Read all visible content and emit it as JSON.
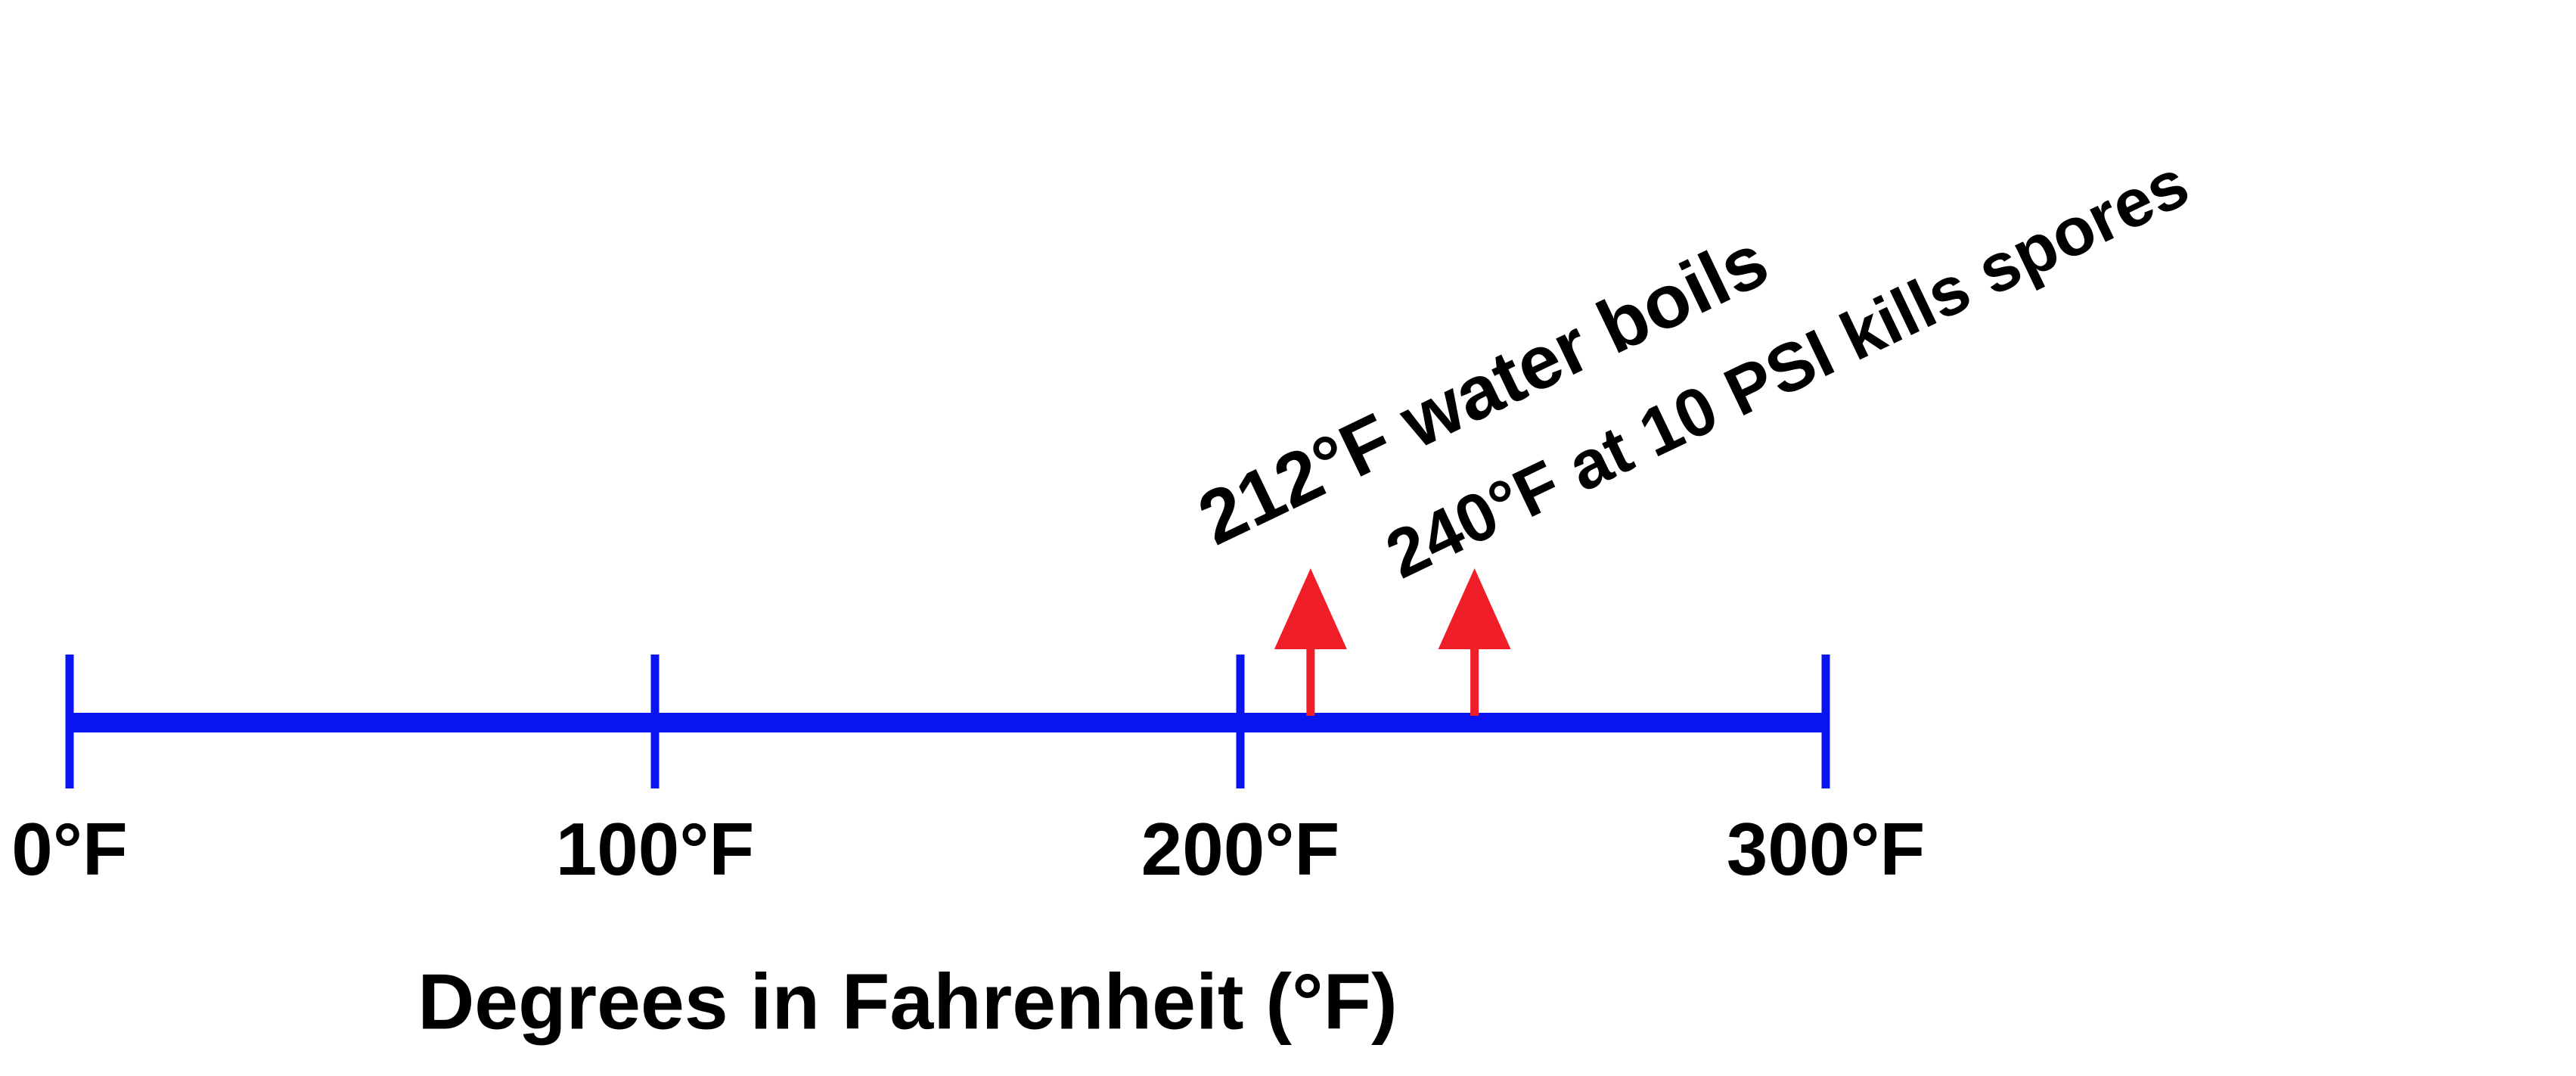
{
  "chart_data": {
    "type": "numberline",
    "xlim": [
      0,
      300
    ],
    "xticks": [
      {
        "value": 0,
        "label": "0°F"
      },
      {
        "value": 100,
        "label": "100°F"
      },
      {
        "value": 200,
        "label": "200°F"
      },
      {
        "value": 300,
        "label": "300°F"
      }
    ],
    "x_label": "Degrees in Fahrenheit (°F)",
    "color": "#0a14f0",
    "annotations": [
      {
        "value": 212,
        "label": "212°F water boils"
      },
      {
        "value": 240,
        "label": "240°F at 10 PSI kills spores"
      }
    ],
    "annotation_color": "#f01e28"
  }
}
